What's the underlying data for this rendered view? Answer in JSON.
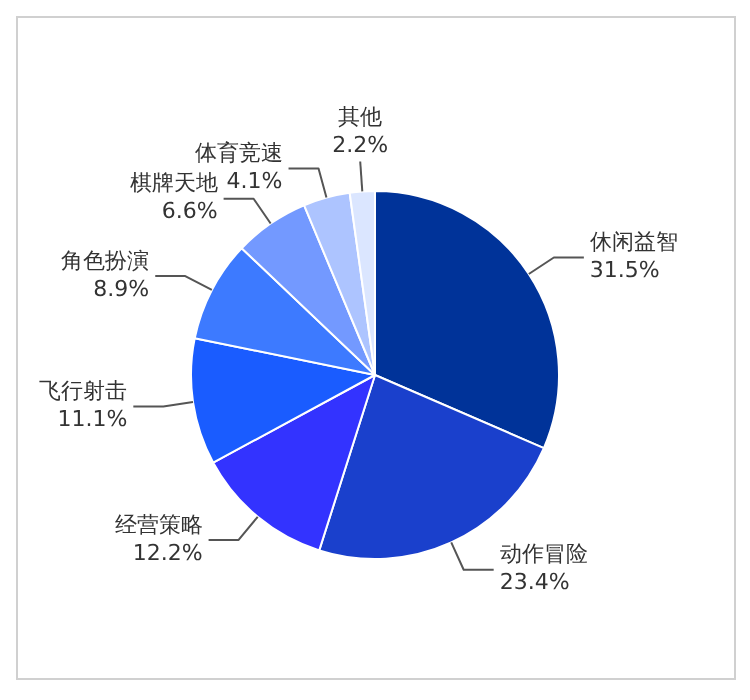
{
  "chart_data": {
    "type": "pie",
    "categories": [
      "休闲益智",
      "动作冒险",
      "经营策略",
      "飞行射击",
      "角色扮演",
      "棋牌天地",
      "体育竞速",
      "其他"
    ],
    "values": [
      31.5,
      23.4,
      12.2,
      11.1,
      8.9,
      6.6,
      4.1,
      2.2
    ],
    "colors": [
      "#003399",
      "#1a40cc",
      "#3333ff",
      "#1a5cff",
      "#3d7aff",
      "#7399ff",
      "#adc4ff",
      "#dbe6ff"
    ],
    "value_labels": [
      "31.5%",
      "23.4%",
      "12.2%",
      "11.1%",
      "8.9%",
      "6.6%",
      "4.1%",
      "2.2%"
    ],
    "legend": false
  }
}
